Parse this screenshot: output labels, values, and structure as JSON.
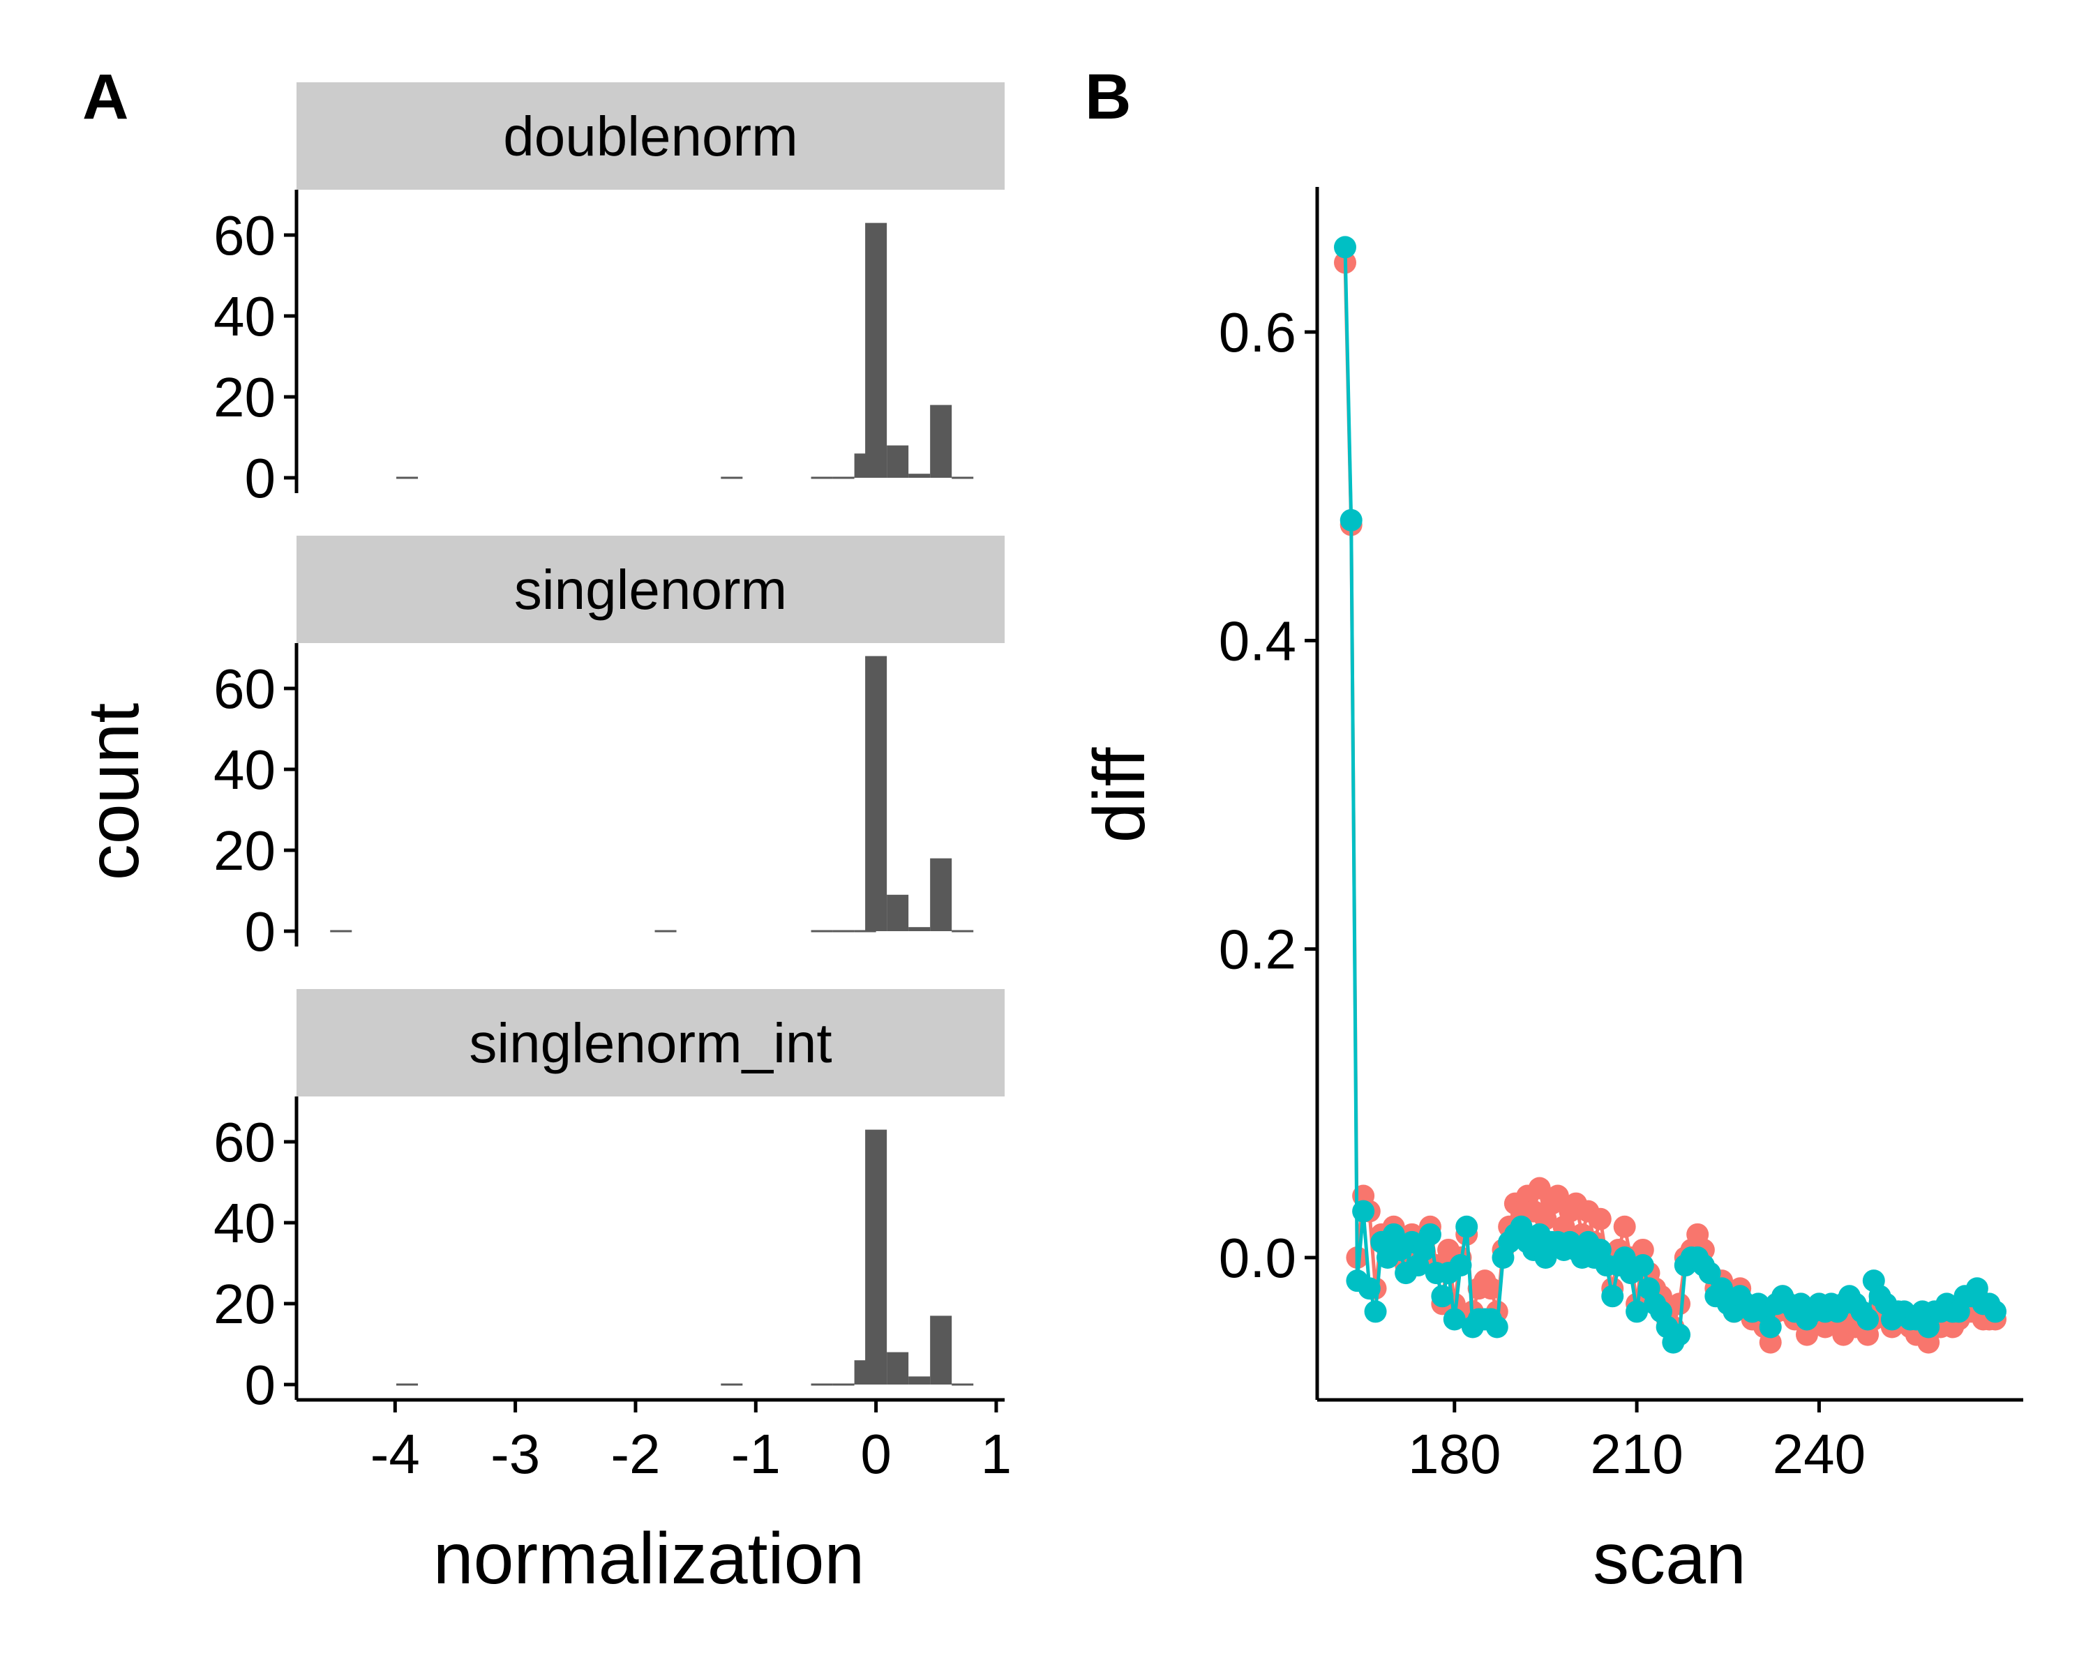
{
  "colors": {
    "bar": "#595959",
    "strip_bg": "#cccccc",
    "series_a": "#f8766d",
    "series_b": "#00bfc4",
    "axis": "#000000"
  },
  "chart_data": [
    {
      "panel": "A",
      "type": "bar",
      "subtype": "histogram",
      "xlabel": "normalization",
      "ylabel": "count",
      "xlim": [
        -4.82,
        1.07
      ],
      "ylim": [
        0,
        70
      ],
      "xticks": [
        "-4",
        "-3",
        "-2",
        "-1",
        "0",
        "1"
      ],
      "yticks": [
        "0",
        "20",
        "40",
        "60"
      ],
      "grid": false,
      "legend": "none",
      "facets": [
        {
          "name": "doublenorm",
          "bins": [
            {
              "x": -3.9,
              "count": 0
            },
            {
              "x": -1.2,
              "count": 0
            },
            {
              "x": -0.45,
              "count": 0
            },
            {
              "x": -0.27,
              "count": 0
            },
            {
              "x": -0.09,
              "count": 6
            },
            {
              "x": 0.0,
              "count": 63
            },
            {
              "x": 0.18,
              "count": 8
            },
            {
              "x": 0.36,
              "count": 1
            },
            {
              "x": 0.54,
              "count": 18
            },
            {
              "x": 0.72,
              "count": 0
            }
          ]
        },
        {
          "name": "singlenorm",
          "bins": [
            {
              "x": -4.45,
              "count": 0
            },
            {
              "x": -1.75,
              "count": 0
            },
            {
              "x": -0.45,
              "count": 0
            },
            {
              "x": -0.27,
              "count": 0
            },
            {
              "x": -0.09,
              "count": 0
            },
            {
              "x": 0.0,
              "count": 68
            },
            {
              "x": 0.18,
              "count": 9
            },
            {
              "x": 0.36,
              "count": 1
            },
            {
              "x": 0.54,
              "count": 18
            },
            {
              "x": 0.72,
              "count": 0
            }
          ]
        },
        {
          "name": "singlenorm_int",
          "bins": [
            {
              "x": -3.9,
              "count": 0
            },
            {
              "x": -1.2,
              "count": 0
            },
            {
              "x": -0.45,
              "count": 0
            },
            {
              "x": -0.27,
              "count": 0
            },
            {
              "x": -0.09,
              "count": 6
            },
            {
              "x": 0.0,
              "count": 63
            },
            {
              "x": 0.18,
              "count": 8
            },
            {
              "x": 0.36,
              "count": 2
            },
            {
              "x": 0.54,
              "count": 17
            },
            {
              "x": 0.72,
              "count": 0
            }
          ]
        }
      ]
    },
    {
      "panel": "B",
      "type": "line",
      "xlabel": "scan",
      "ylabel": "diff",
      "xlim": [
        161,
        272
      ],
      "ylim": [
        -0.09,
        0.69
      ],
      "xticks": [
        "180",
        "210",
        "240"
      ],
      "yticks": [
        "0.0",
        "0.2",
        "0.4",
        "0.6"
      ],
      "grid": false,
      "legend": "none",
      "x": [
        162,
        163,
        164,
        165,
        166,
        167,
        168,
        169,
        170,
        171,
        172,
        173,
        174,
        175,
        176,
        177,
        178,
        179,
        180,
        181,
        182,
        183,
        184,
        185,
        186,
        187,
        188,
        189,
        190,
        191,
        192,
        193,
        194,
        195,
        196,
        197,
        198,
        199,
        200,
        201,
        202,
        203,
        204,
        205,
        206,
        207,
        208,
        209,
        210,
        211,
        212,
        213,
        214,
        215,
        216,
        217,
        218,
        219,
        220,
        221,
        222,
        223,
        224,
        225,
        226,
        227,
        228,
        229,
        230,
        231,
        232,
        233,
        234,
        235,
        236,
        237,
        238,
        239,
        240,
        241,
        242,
        243,
        244,
        245,
        246,
        247,
        248,
        249,
        250,
        251,
        252,
        253,
        254,
        255,
        256,
        257,
        258,
        259,
        260,
        261,
        262,
        263,
        264,
        265,
        266,
        267,
        268,
        269
      ],
      "series": [
        {
          "values": [
            0.645,
            0.475,
            0.0,
            0.04,
            0.03,
            -0.02,
            0.015,
            0.005,
            0.02,
            0.01,
            -0.005,
            0.015,
            0.0,
            0.01,
            0.02,
            -0.005,
            -0.03,
            0.005,
            -0.03,
            0.0,
            0.015,
            -0.035,
            -0.02,
            -0.015,
            -0.02,
            -0.035,
            0.005,
            0.02,
            0.035,
            0.03,
            0.04,
            0.03,
            0.045,
            0.025,
            0.035,
            0.04,
            0.02,
            0.03,
            0.035,
            0.015,
            0.03,
            0.01,
            0.025,
            0.0,
            -0.02,
            0.005,
            0.02,
            0.0,
            -0.03,
            0.005,
            -0.01,
            -0.02,
            -0.025,
            -0.04,
            -0.045,
            -0.03,
            0.0,
            0.005,
            0.015,
            0.005,
            -0.01,
            -0.02,
            -0.015,
            -0.025,
            -0.035,
            -0.02,
            -0.03,
            -0.04,
            -0.035,
            -0.045,
            -0.055,
            -0.035,
            -0.025,
            -0.035,
            -0.04,
            -0.03,
            -0.05,
            -0.04,
            -0.03,
            -0.045,
            -0.035,
            -0.04,
            -0.05,
            -0.035,
            -0.045,
            -0.04,
            -0.05,
            -0.04,
            -0.03,
            -0.035,
            -0.045,
            -0.035,
            -0.04,
            -0.045,
            -0.05,
            -0.04,
            -0.055,
            -0.04,
            -0.045,
            -0.035,
            -0.045,
            -0.04,
            -0.03,
            -0.035,
            -0.025,
            -0.04,
            -0.04,
            -0.04
          ]
        },
        {
          "values": [
            0.655,
            0.478,
            -0.015,
            0.03,
            -0.02,
            -0.035,
            0.01,
            0.0,
            0.015,
            0.005,
            -0.01,
            0.01,
            -0.005,
            0.005,
            0.015,
            -0.01,
            -0.025,
            -0.01,
            -0.04,
            -0.005,
            0.02,
            -0.045,
            -0.04,
            -0.04,
            -0.04,
            -0.045,
            0.0,
            0.01,
            0.015,
            0.02,
            0.01,
            0.005,
            0.015,
            0.0,
            0.01,
            0.01,
            0.005,
            0.01,
            0.005,
            0.0,
            0.01,
            0.0,
            0.005,
            -0.005,
            -0.025,
            -0.005,
            0.0,
            -0.01,
            -0.035,
            -0.005,
            -0.02,
            -0.03,
            -0.035,
            -0.045,
            -0.055,
            -0.05,
            -0.005,
            0.0,
            0.0,
            -0.005,
            -0.01,
            -0.025,
            -0.02,
            -0.03,
            -0.035,
            -0.025,
            -0.03,
            -0.035,
            -0.03,
            -0.035,
            -0.045,
            -0.03,
            -0.025,
            -0.03,
            -0.035,
            -0.03,
            -0.04,
            -0.035,
            -0.03,
            -0.035,
            -0.03,
            -0.035,
            -0.03,
            -0.025,
            -0.03,
            -0.035,
            -0.04,
            -0.015,
            -0.025,
            -0.03,
            -0.04,
            -0.035,
            -0.035,
            -0.04,
            -0.04,
            -0.035,
            -0.045,
            -0.035,
            -0.035,
            -0.03,
            -0.035,
            -0.035,
            -0.025,
            -0.025,
            -0.02,
            -0.03,
            -0.03,
            -0.035
          ]
        }
      ]
    }
  ]
}
